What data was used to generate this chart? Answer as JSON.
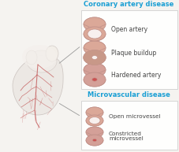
{
  "bg_color": "#f5f3f0",
  "title1": "Coronary artery disease",
  "title2": "Microvascular disease",
  "title1_color": "#1a9fd4",
  "title2_color": "#1a9fd4",
  "labels_coronary": [
    "Open artery",
    "Plaque buildup",
    "Hardened artery"
  ],
  "labels_micro": [
    "Open microvessel",
    "Constricted\nmicrovessel"
  ],
  "text_color": "#444444",
  "box_edge_color": "#cccccc",
  "heart_fill": "#e8e4e0",
  "heart_top_fill": "#f0ecea",
  "vessel_color": "#c05050",
  "tube_outer": "#dba898",
  "tube_lumen": "#f8f0ee",
  "tube_edge": "#c09088",
  "plaque_color": "#c89888",
  "constrict_lumen": "#cc5050"
}
